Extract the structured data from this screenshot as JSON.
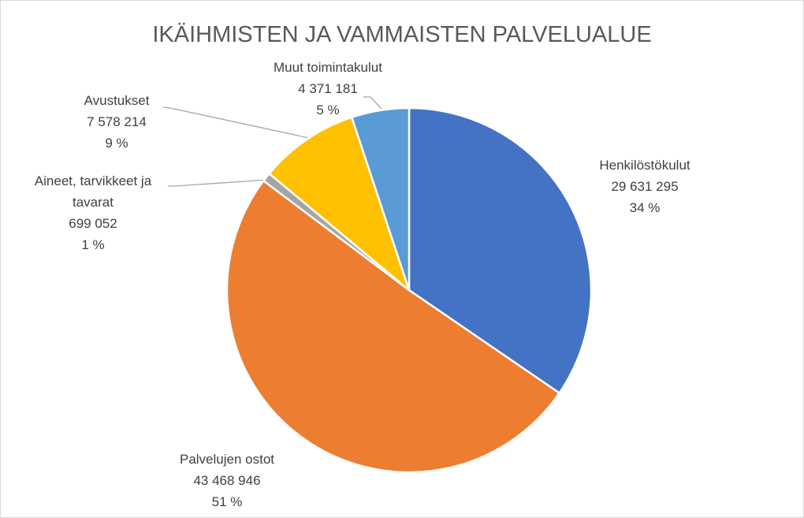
{
  "chart_data": {
    "type": "pie",
    "title": "IKÄIHMISTEN JA VAMMAISTEN PALVELUALUE",
    "categories": [
      "Henkilöstökulut",
      "Palvelujen ostot",
      "Aineet, tarvikkeet ja tavarat",
      "Avustukset",
      "Muut toimintakulut"
    ],
    "values": [
      29631295,
      43468946,
      699052,
      7578214,
      4371181
    ],
    "value_labels": [
      "29 631 295",
      "43 468 946",
      "699 052",
      "7 578 214",
      "4 371 181"
    ],
    "percent_labels": [
      "34 %",
      "51 %",
      "1 %",
      "9 %",
      "5 %"
    ],
    "colors": [
      "#4472c4",
      "#ed7d31",
      "#a5a5a5",
      "#ffc000",
      "#5b9bd5"
    ]
  }
}
